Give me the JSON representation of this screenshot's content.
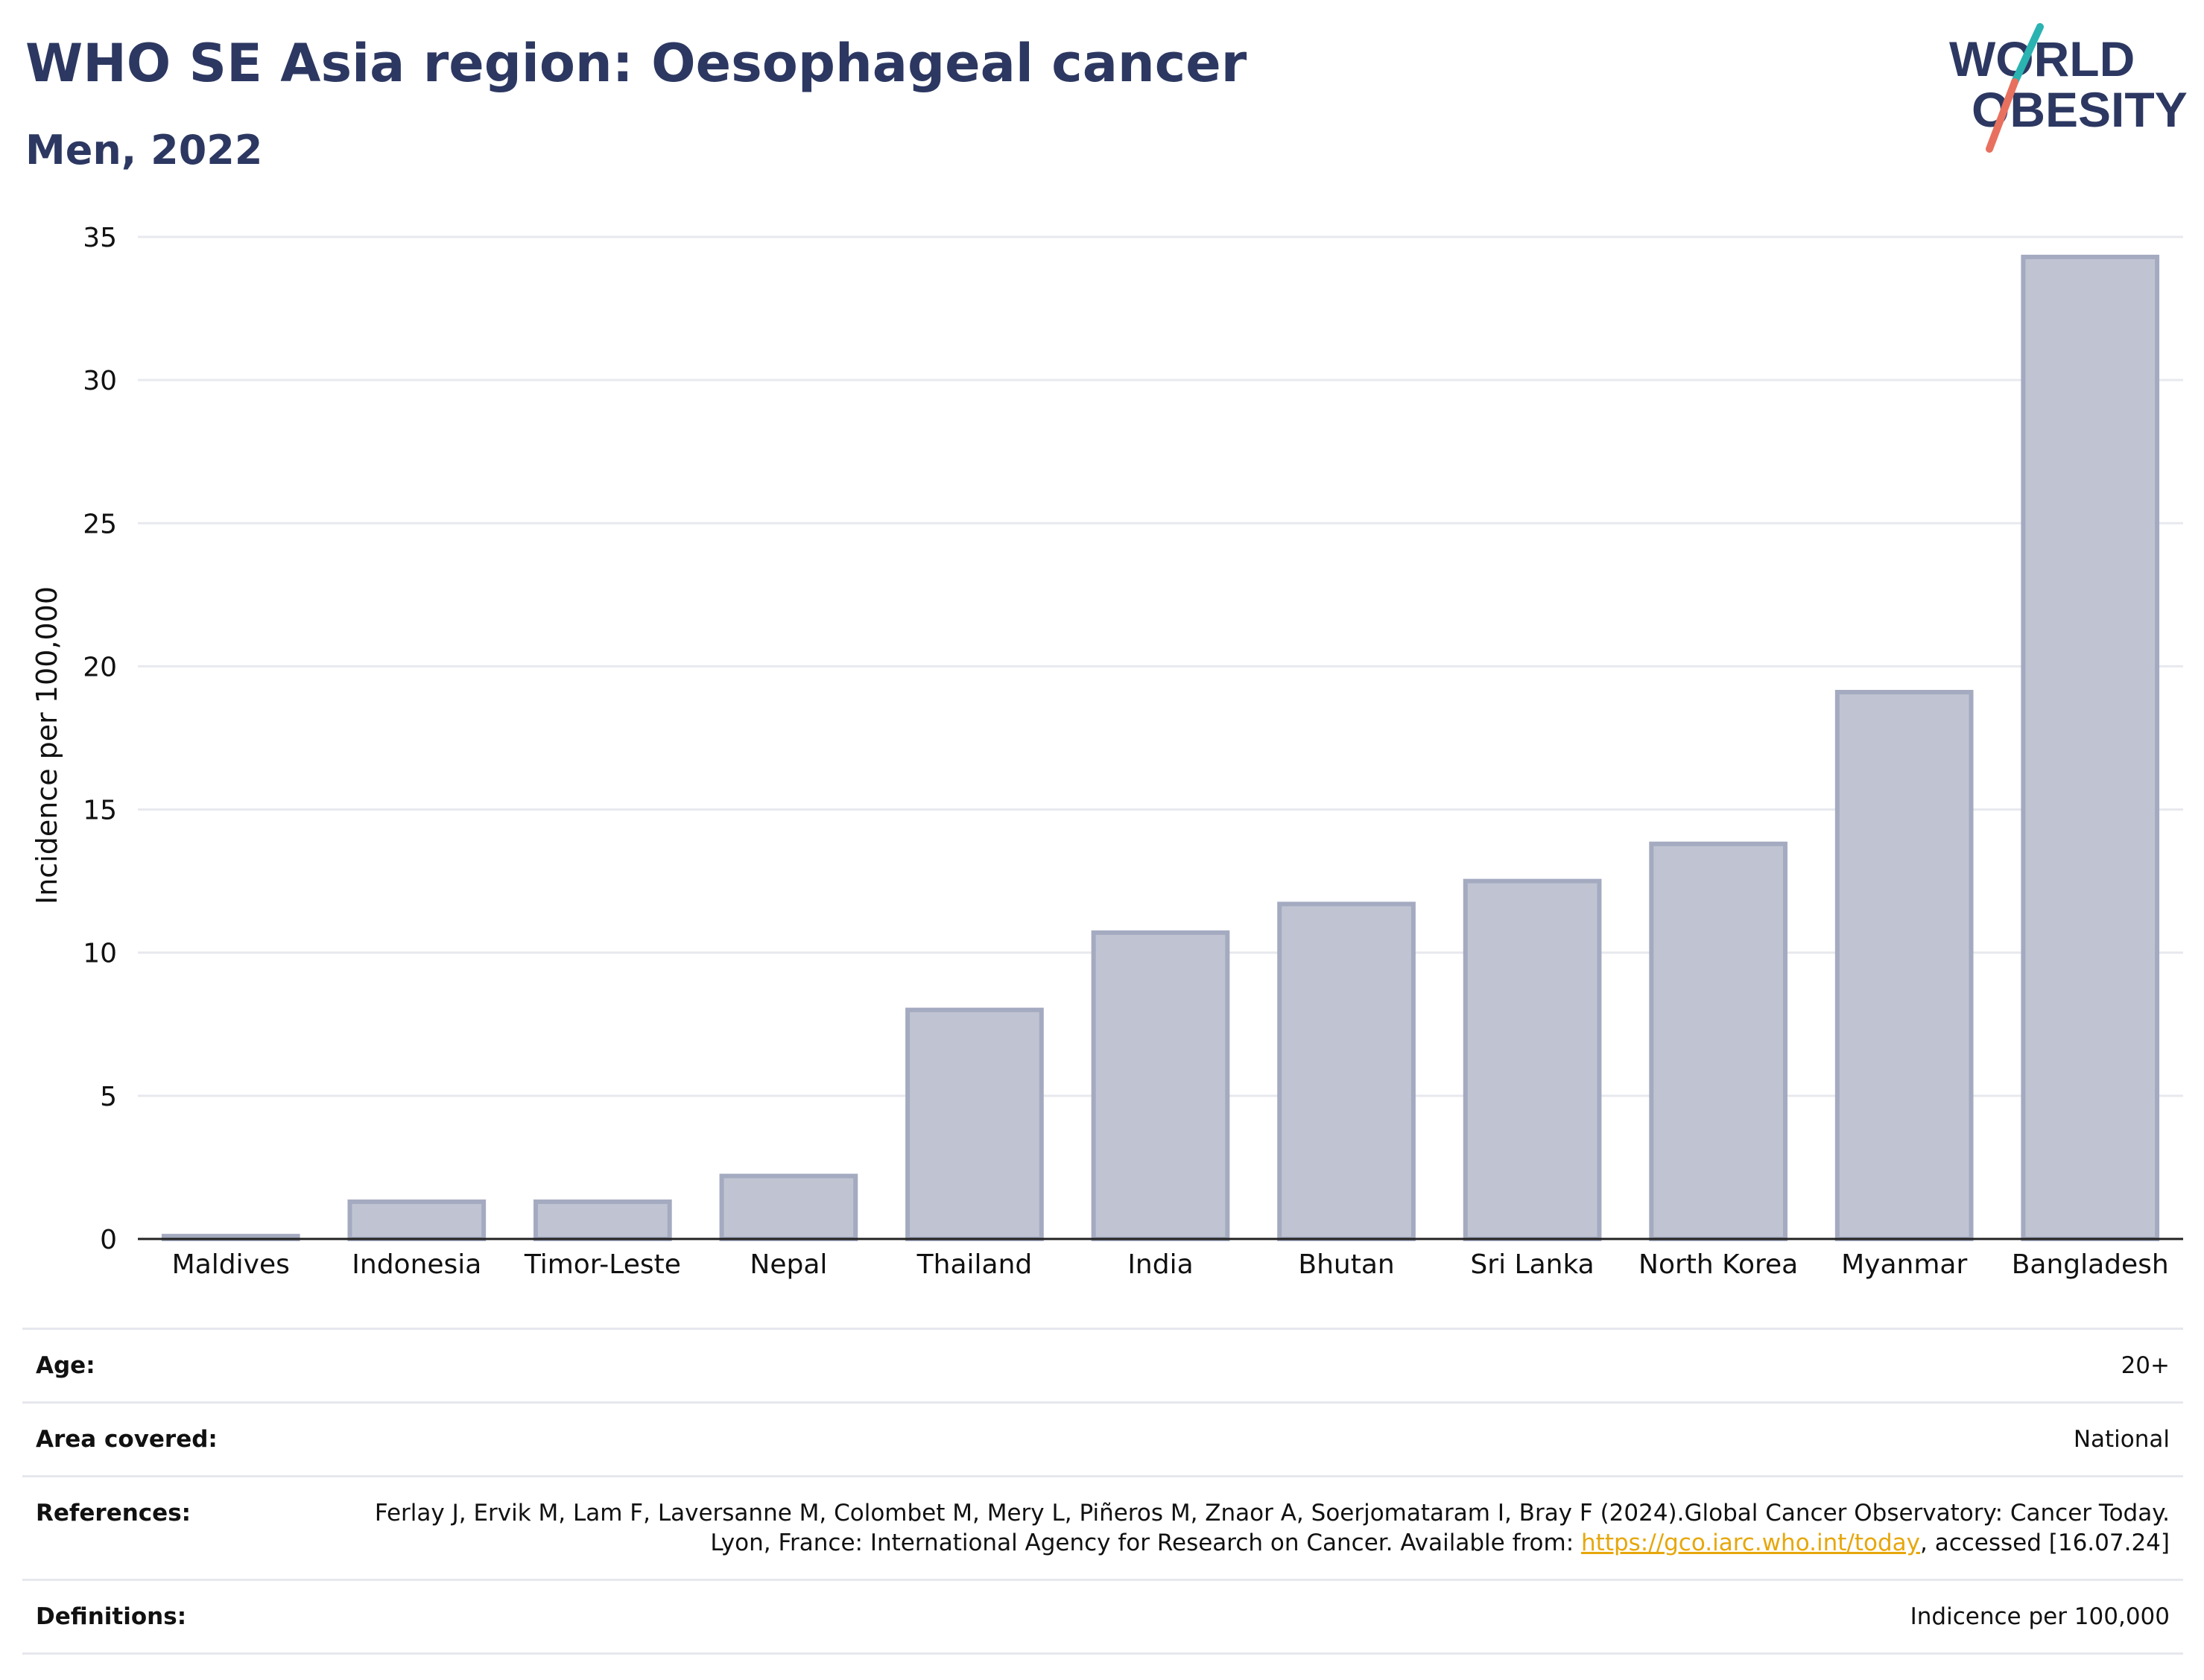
{
  "header": {
    "title": "WHO SE Asia region: Oesophageal cancer",
    "subtitle": "Men, 2022"
  },
  "logo": {
    "line1": "WORLD",
    "line2": "OBESITY",
    "slash_colors": [
      "#2ab3b1",
      "#e8705f"
    ],
    "text_color": "#2c3861"
  },
  "chart_data": {
    "type": "bar",
    "categories": [
      "Maldives",
      "Indonesia",
      "Timor-Leste",
      "Nepal",
      "Thailand",
      "India",
      "Bhutan",
      "Sri Lanka",
      "North Korea",
      "Myanmar",
      "Bangladesh"
    ],
    "values": [
      0.1,
      1.3,
      1.3,
      2.2,
      8.0,
      10.7,
      11.7,
      12.5,
      13.8,
      19.1,
      34.3
    ],
    "title": "WHO SE Asia region: Oesophageal cancer",
    "subtitle": "Men, 2022",
    "xlabel": "",
    "ylabel": "Incidence per 100,000",
    "ylim": [
      0,
      35
    ],
    "yticks": [
      0,
      5,
      10,
      15,
      20,
      25,
      30,
      35
    ],
    "grid": true,
    "bar_color": "#c0c4d2",
    "bar_edge_color": "#a4aac0"
  },
  "info": {
    "rows": [
      {
        "label": "Age:",
        "value": "20+"
      },
      {
        "label": "Area covered:",
        "value": "National"
      },
      {
        "label": "References:",
        "value_before": "Ferlay J, Ervik M, Lam F, Laversanne M, Colombet M, Mery L, Piñeros M, Znaor A, Soerjomataram I, Bray F (2024).Global Cancer Observatory: Cancer Today. Lyon, France: International Agency for Research on Cancer. Available from: ",
        "link": "https://gco.iarc.who.int/today",
        "value_after": ", accessed [16.07.24]"
      },
      {
        "label": "Definitions:",
        "value": "Indicence per 100,000"
      }
    ]
  }
}
